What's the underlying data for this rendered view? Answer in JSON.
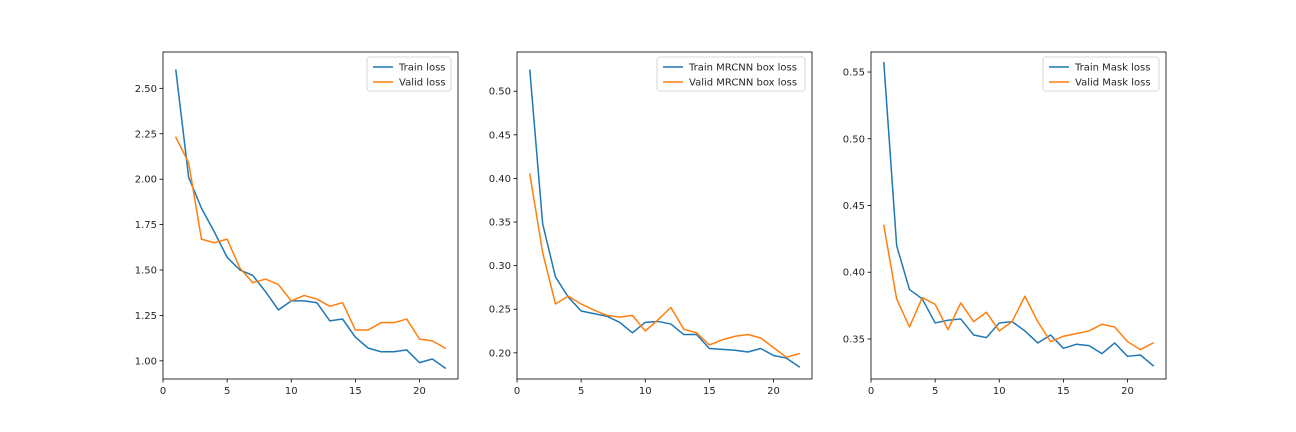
{
  "colors": {
    "train": "#1f77b4",
    "valid": "#ff7f0e",
    "axis": "#000000",
    "legend_border": "#cccccc"
  },
  "chart_data": [
    {
      "type": "line",
      "xlim": [
        0,
        23
      ],
      "ylim": [
        0.9,
        2.7
      ],
      "xticks": [
        0,
        5,
        10,
        15,
        20
      ],
      "xtick_labels": [
        "0",
        "5",
        "10",
        "15",
        "20"
      ],
      "yticks": [
        1.0,
        1.25,
        1.5,
        1.75,
        2.0,
        2.25,
        2.5
      ],
      "ytick_labels": [
        "1.00",
        "1.25",
        "1.50",
        "1.75",
        "2.00",
        "2.25",
        "2.50"
      ],
      "x": [
        1,
        2,
        3,
        4,
        5,
        6,
        7,
        8,
        9,
        10,
        11,
        12,
        13,
        14,
        15,
        16,
        17,
        18,
        19,
        20,
        21,
        22
      ],
      "legend_position": "top-right",
      "series": [
        {
          "name": "Train loss",
          "color": "#1f77b4",
          "values": [
            2.6,
            2.01,
            1.84,
            1.71,
            1.57,
            1.5,
            1.47,
            1.38,
            1.28,
            1.33,
            1.33,
            1.32,
            1.22,
            1.23,
            1.13,
            1.07,
            1.05,
            1.05,
            1.06,
            0.99,
            1.01,
            0.96
          ]
        },
        {
          "name": "Valid loss",
          "color": "#ff7f0e",
          "values": [
            2.23,
            2.09,
            1.67,
            1.65,
            1.67,
            1.51,
            1.43,
            1.45,
            1.42,
            1.33,
            1.36,
            1.34,
            1.3,
            1.32,
            1.17,
            1.17,
            1.21,
            1.21,
            1.23,
            1.12,
            1.11,
            1.07
          ]
        }
      ]
    },
    {
      "type": "line",
      "xlim": [
        0,
        23
      ],
      "ylim": [
        0.17,
        0.545
      ],
      "xticks": [
        0,
        5,
        10,
        15,
        20
      ],
      "xtick_labels": [
        "0",
        "5",
        "10",
        "15",
        "20"
      ],
      "yticks": [
        0.2,
        0.25,
        0.3,
        0.35,
        0.4,
        0.45,
        0.5
      ],
      "ytick_labels": [
        "0.20",
        "0.25",
        "0.30",
        "0.35",
        "0.40",
        "0.45",
        "0.50"
      ],
      "x": [
        1,
        2,
        3,
        4,
        5,
        6,
        7,
        8,
        9,
        10,
        11,
        12,
        13,
        14,
        15,
        16,
        17,
        18,
        19,
        20,
        21,
        22
      ],
      "legend_position": "top-right",
      "series": [
        {
          "name": "Train MRCNN box loss",
          "color": "#1f77b4",
          "values": [
            0.524,
            0.348,
            0.287,
            0.264,
            0.248,
            0.245,
            0.242,
            0.235,
            0.223,
            0.235,
            0.236,
            0.233,
            0.221,
            0.221,
            0.205,
            0.204,
            0.203,
            0.201,
            0.205,
            0.197,
            0.194,
            0.184
          ]
        },
        {
          "name": "Valid MRCNN box loss",
          "color": "#ff7f0e",
          "values": [
            0.405,
            0.315,
            0.256,
            0.265,
            0.256,
            0.249,
            0.243,
            0.241,
            0.243,
            0.225,
            0.238,
            0.252,
            0.227,
            0.223,
            0.209,
            0.215,
            0.219,
            0.221,
            0.217,
            0.206,
            0.195,
            0.199
          ]
        }
      ]
    },
    {
      "type": "line",
      "xlim": [
        0,
        23
      ],
      "ylim": [
        0.32,
        0.565
      ],
      "xticks": [
        0,
        5,
        10,
        15,
        20
      ],
      "xtick_labels": [
        "0",
        "5",
        "10",
        "15",
        "20"
      ],
      "yticks": [
        0.35,
        0.4,
        0.45,
        0.5,
        0.55
      ],
      "ytick_labels": [
        "0.35",
        "0.40",
        "0.45",
        "0.50",
        "0.55"
      ],
      "x": [
        1,
        2,
        3,
        4,
        5,
        6,
        7,
        8,
        9,
        10,
        11,
        12,
        13,
        14,
        15,
        16,
        17,
        18,
        19,
        20,
        21,
        22
      ],
      "legend_position": "top-right",
      "series": [
        {
          "name": "Train Mask loss",
          "color": "#1f77b4",
          "values": [
            0.557,
            0.42,
            0.387,
            0.38,
            0.362,
            0.364,
            0.365,
            0.353,
            0.351,
            0.362,
            0.363,
            0.356,
            0.347,
            0.353,
            0.343,
            0.346,
            0.345,
            0.339,
            0.347,
            0.337,
            0.338,
            0.33
          ]
        },
        {
          "name": "Valid Mask loss",
          "color": "#ff7f0e",
          "values": [
            0.435,
            0.38,
            0.359,
            0.381,
            0.376,
            0.357,
            0.377,
            0.363,
            0.37,
            0.356,
            0.363,
            0.382,
            0.363,
            0.348,
            0.352,
            0.354,
            0.356,
            0.361,
            0.359,
            0.348,
            0.342,
            0.347
          ]
        }
      ]
    }
  ]
}
